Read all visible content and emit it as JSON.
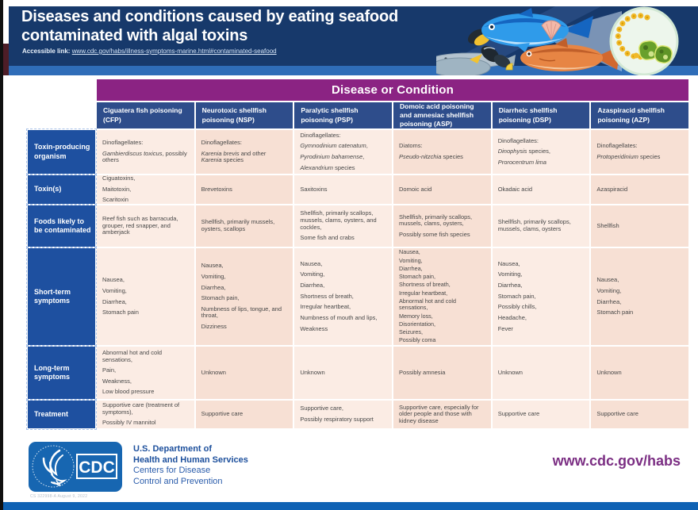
{
  "header": {
    "title_line1": "Diseases and conditions caused by eating seafood",
    "title_line2": "contaminated with algal toxins",
    "accessible_label": "Accessible link:",
    "accessible_url": "www.cdc.gov/habs/illness-symptoms-marine.html#contaminated-seafood"
  },
  "table": {
    "banner": "Disease or Condition",
    "columns": [
      "Ciguatera fish poisoning (CFP)",
      "Neurotoxic shellfish poisoning (NSP)",
      "Paralytic shellfish poisoning (PSP)",
      "Domoic acid poisoning and amnesiac shellfish poisoning (ASP)",
      "Diarrheic shellfish poisoning (DSP)",
      "Azaspiracid shellfish poisoning (AZP)"
    ],
    "rows": [
      {
        "label": "Toxin-producing organism",
        "cells": [
          [
            "Dinoflagellates:",
            "*Gambierdiscus toxicus*, possibly others"
          ],
          [
            "Dinoflagellates:",
            "*Karenia brevis* and other *Karenia* species"
          ],
          [
            "Dinoflagellates:",
            "*Gymnodinium catenatum*,",
            "*Pyrodinium bahamense*,",
            "*Alexandrium* species"
          ],
          [
            "Diatoms:",
            "*Pseudo-nitzchia* species"
          ],
          [
            "Dinoflagellates:",
            "*Dinophysis* species,",
            "*Prorocentrum lima*"
          ],
          [
            "Dinoflagellates:",
            "*Protoperidinium* species"
          ]
        ]
      },
      {
        "label": "Toxin(s)",
        "cells": [
          [
            "Ciguatoxins,",
            "Maitotoxin,",
            "Scaritoxin"
          ],
          [
            "Brevetoxins"
          ],
          [
            "Saxitoxins"
          ],
          [
            "Domoic acid"
          ],
          [
            "Okadaic acid"
          ],
          [
            "Azaspiracid"
          ]
        ]
      },
      {
        "label": "Foods likely to be contaminated",
        "cells": [
          [
            "Reef fish such as barracuda, grouper, red snapper, and amberjack"
          ],
          [
            "Shellfish, primarily mussels, oysters, scallops"
          ],
          [
            "Shellfish, primarily scallops, mussels, clams, oysters, and cockles,",
            "Some fish and crabs"
          ],
          [
            "Shellfish, primarily scallops, mussels, clams, oysters,",
            "Possibly some fish species"
          ],
          [
            "Shellfish, primarily scallops, mussels, clams, oysters"
          ],
          [
            "Shellfish"
          ]
        ]
      },
      {
        "label": "Short-term symptoms",
        "cells": [
          [
            "Nausea,",
            "Vomiting,",
            "Diarrhea,",
            "Stomach pain"
          ],
          [
            "Nausea,",
            "Vomiting,",
            "Diarrhea,",
            "Stomach pain,",
            "Numbness of lips, tongue, and throat,",
            "Dizziness"
          ],
          [
            "Nausea,",
            "Vomiting,",
            "Diarrhea,",
            "Shortness of breath,",
            "Irregular heartbeat,",
            "Numbness of mouth and lips,",
            "Weakness"
          ],
          [
            "Nausea,",
            "Vomiting,",
            "Diarrhea,",
            "Stomach pain,",
            "Shortness of breath,",
            "Irregular heartbeat,",
            "Abnormal hot and cold sensations,",
            "Memory loss,",
            "Disorientation,",
            "Seizures,",
            "Possibly coma"
          ],
          [
            "Nausea,",
            "Vomiting,",
            "Diarrhea,",
            "Stomach pain,",
            "Possibly chills,",
            "Headache,",
            "Fever"
          ],
          [
            "Nausea,",
            "Vomiting,",
            "Diarrhea,",
            "Stomach pain"
          ]
        ]
      },
      {
        "label": "Long-term symptoms",
        "cells": [
          [
            "Abnormal hot and cold sensations,",
            "Pain,",
            "Weakness,",
            "Low blood pressure"
          ],
          [
            "Unknown"
          ],
          [
            "Unknown"
          ],
          [
            "Possibly amnesia"
          ],
          [
            "Unknown"
          ],
          [
            "Unknown"
          ]
        ]
      },
      {
        "label": "Treatment",
        "cells": [
          [
            "Supportive care (treatment of symptoms),",
            "Possibly IV mannitol"
          ],
          [
            "Supportive care"
          ],
          [
            "Supportive care,",
            "Possibly respiratory support"
          ],
          [
            "Supportive care, especially for older people and those with kidney disease"
          ],
          [
            "Supportive care"
          ],
          [
            "Supportive care"
          ]
        ]
      }
    ]
  },
  "footer": {
    "logo_text": "CDC",
    "dept_bold_1": "U.S. Department of",
    "dept_bold_2": "Health and Human Services",
    "dept_reg_1": "Centers for Disease",
    "dept_reg_2": "Control and Prevention",
    "doc_note": "CS 322998-A    August 9, 2022",
    "url": "www.cdc.gov/habs"
  },
  "colors": {
    "header_navy": "#17396b",
    "header_strip_blue": "#2f6db8",
    "banner_purple": "#8b2383",
    "column_header_blue": "#2e4d8b",
    "row_label_blue": "#1e50a0",
    "cell_light": "#fbece4",
    "cell_dark": "#f7e0d4",
    "footer_bar_blue": "#0f62b4",
    "cdc_logo_blue": "#1766b1",
    "dept_text_blue": "#1c4f9c",
    "url_purple": "#7b2e83"
  }
}
